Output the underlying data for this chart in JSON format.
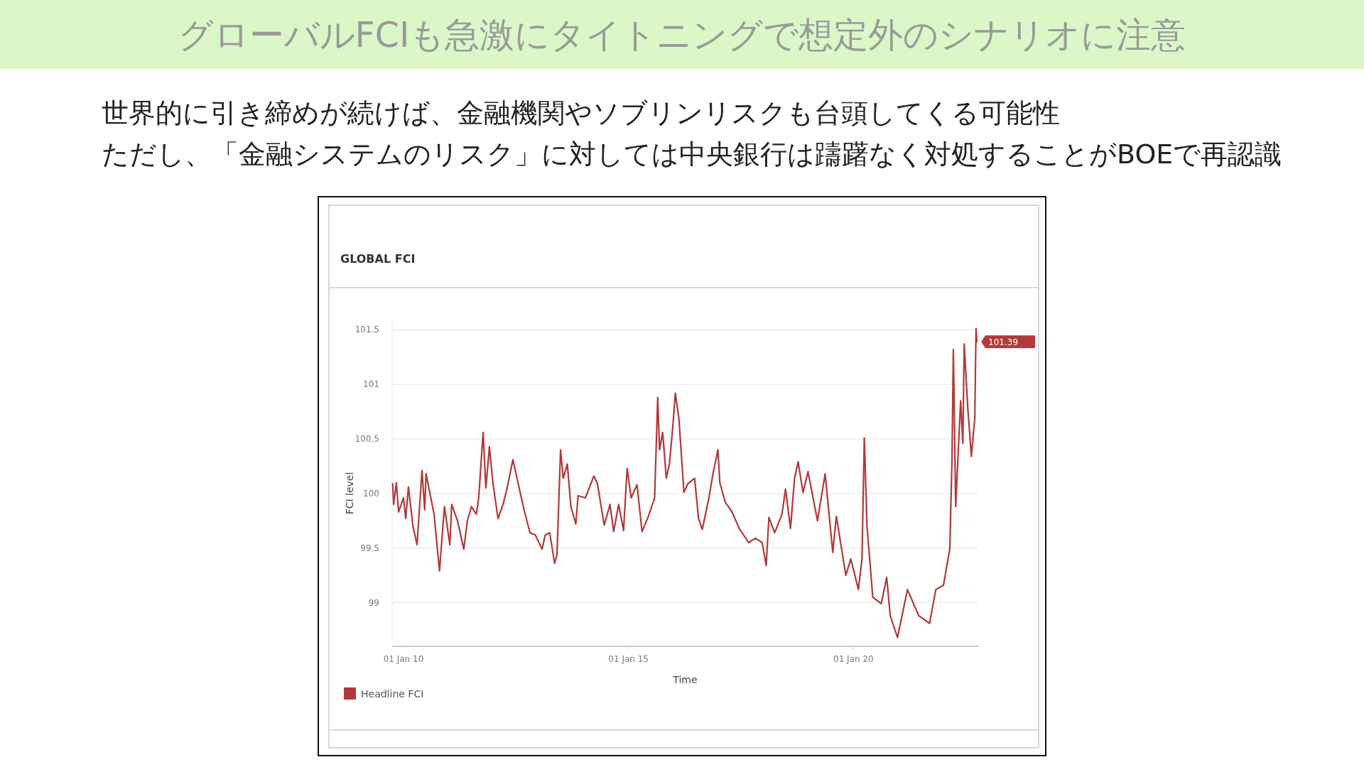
{
  "chart_data": {
    "type": "line",
    "title": "グローバルFCIも急激にタイトニングで想定外のシナリオに注意",
    "subtitle": "世界的に引き締めが続けば、金融機関やソブリンリスクも台頭してくる可能性",
    "annotations": [
      "ただし、「金融システムのリスク」に対しては中央銀行は躊躇なく対処することがBOEで再認識",
      "GLOBAL FCI",
      {
        "text": "101.39",
        "x": "2022-09-29",
        "y": 101.39
      }
    ],
    "xlabel": "Time",
    "ylabel": "FCI level",
    "xlim": [
      "2009-10-01",
      "2022-10-10"
    ],
    "ylim": [
      98.6,
      101.6
    ],
    "xticks": [
      {
        "value": "2010-01-01",
        "label": "01 Jan 10"
      },
      {
        "value": "2015-01-01",
        "label": "01 Jan 15"
      },
      {
        "value": "2020-01-01",
        "label": "01 Jan 20"
      }
    ],
    "yticks": [
      99,
      99.5,
      100,
      100.5,
      101,
      101.5
    ],
    "grid": "y",
    "legend": "bottom left",
    "marker": "none",
    "line_style": "solid",
    "series": [
      {
        "name": "Headline FCI",
        "color": "#b03a3a",
        "x": [
          "2009-10-05",
          "2009-10-13",
          "2009-11-04",
          "2009-11-22",
          "2010-01-01",
          "2010-01-19",
          "2010-02-10",
          "2010-03-19",
          "2010-04-21",
          "2010-05-31",
          "2010-06-22",
          "2010-07-03",
          "2010-09-06",
          "2010-10-20",
          "2010-11-29",
          "2011-01-12",
          "2011-01-27",
          "2011-03-15",
          "2011-05-05",
          "2011-06-03",
          "2011-07-06",
          "2011-08-15",
          "2011-09-03",
          "2011-10-09",
          "2011-10-31",
          "2011-11-29",
          "2011-12-28",
          "2012-02-07",
          "2012-03-19",
          "2012-04-17",
          "2012-06-07",
          "2012-07-10",
          "2012-09-06",
          "2012-10-24",
          "2012-12-06",
          "2013-01-30",
          "2013-02-25",
          "2013-04-02",
          "2013-05-12",
          "2013-05-31",
          "2013-06-29",
          "2013-07-21",
          "2013-08-23",
          "2013-09-21",
          "2013-10-31",
          "2013-11-18",
          "2014-01-16",
          "2014-03-26",
          "2014-04-24",
          "2014-06-18",
          "2014-08-04",
          "2014-09-03",
          "2014-10-13",
          "2014-11-22",
          "2014-12-21",
          "2015-01-23",
          "2015-03-11",
          "2015-04-21",
          "2015-06-11",
          "2015-08-01",
          "2015-08-26",
          "2015-09-10",
          "2015-10-05",
          "2015-11-04",
          "2015-11-29",
          "2015-12-25",
          "2016-01-16",
          "2016-02-14",
          "2016-03-26",
          "2016-04-27",
          "2016-06-21",
          "2016-07-23",
          "2016-08-22",
          "2016-10-12",
          "2016-11-17",
          "2016-12-27",
          "2017-01-12",
          "2017-02-25",
          "2017-04-21",
          "2017-06-18",
          "2017-09-03",
          "2017-10-27",
          "2017-12-21",
          "2018-01-23",
          "2018-02-14",
          "2018-04-02",
          "2018-05-31",
          "2018-06-29",
          "2018-08-08",
          "2018-09-10",
          "2018-10-09",
          "2018-11-18",
          "2018-12-28",
          "2019-03-15",
          "2019-05-16",
          "2019-07-17",
          "2019-08-15",
          "2019-10-31",
          "2019-12-10",
          "2020-02-10",
          "2020-03-10",
          "2020-03-29",
          "2020-04-20",
          "2020-06-06",
          "2020-08-14",
          "2020-09-27",
          "2020-10-26",
          "2020-12-24",
          "2021-03-15",
          "2021-06-14",
          "2021-09-10",
          "2021-10-31",
          "2022-01-01",
          "2022-02-21",
          "2022-03-11",
          "2022-03-22",
          "2022-04-10",
          "2022-05-20",
          "2022-06-07",
          "2022-06-18",
          "2022-07-17",
          "2022-08-15",
          "2022-09-12",
          "2022-09-22",
          "2022-09-29"
        ],
        "values": [
          100.09,
          99.9,
          100.1,
          99.83,
          99.96,
          99.77,
          100.06,
          99.7,
          99.53,
          100.21,
          99.85,
          100.18,
          99.81,
          99.29,
          99.88,
          99.53,
          99.9,
          99.75,
          99.49,
          99.75,
          99.88,
          99.81,
          99.96,
          100.56,
          100.05,
          100.43,
          100.09,
          99.77,
          99.9,
          100.03,
          100.31,
          100.14,
          99.85,
          99.64,
          99.62,
          99.49,
          99.62,
          99.64,
          99.36,
          99.44,
          100.4,
          100.14,
          100.27,
          99.88,
          99.72,
          99.98,
          99.96,
          100.16,
          100.09,
          99.71,
          99.9,
          99.65,
          99.9,
          99.66,
          100.23,
          99.96,
          100.08,
          99.65,
          99.79,
          99.96,
          100.88,
          100.4,
          100.56,
          100.14,
          100.27,
          100.59,
          100.92,
          100.69,
          100.01,
          100.09,
          100.14,
          99.77,
          99.67,
          99.94,
          100.18,
          100.4,
          100.1,
          99.92,
          99.83,
          99.68,
          99.55,
          99.59,
          99.55,
          99.34,
          99.78,
          99.64,
          99.81,
          100.04,
          99.68,
          100.14,
          100.29,
          100.01,
          100.2,
          99.75,
          100.18,
          99.46,
          99.79,
          99.25,
          99.4,
          99.12,
          99.4,
          100.51,
          99.7,
          99.05,
          98.99,
          99.23,
          98.88,
          98.68,
          99.12,
          98.88,
          98.81,
          99.12,
          99.16,
          99.49,
          100.31,
          101.32,
          99.88,
          100.85,
          100.46,
          101.37,
          100.79,
          100.34,
          100.69,
          101.51,
          101.39
        ]
      }
    ]
  }
}
